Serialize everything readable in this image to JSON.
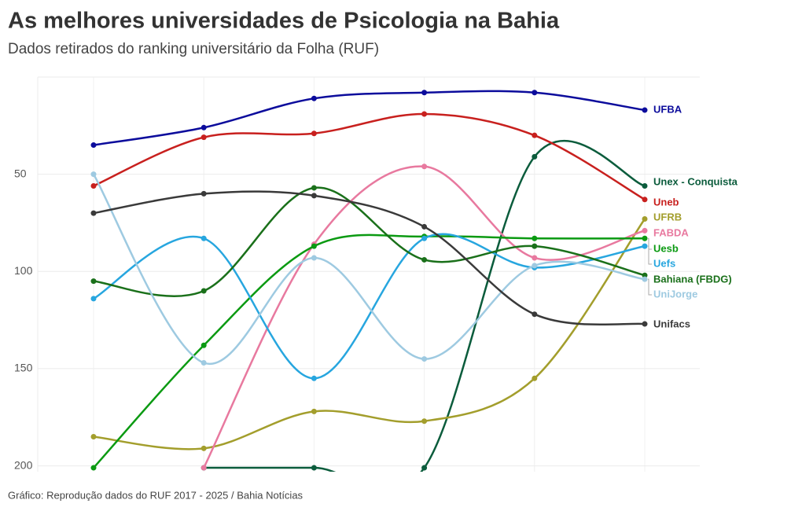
{
  "chart_data": {
    "type": "line",
    "title": "As melhores universidades de Psicologia na Bahia",
    "subtitle": "Dados retirados do ranking universitário da Folha (RUF)",
    "source": "Gráfico: Reprodução dados do RUF 2017 - 2025 / Bahia Notícias",
    "categories": [
      null,
      null,
      null,
      null,
      null,
      null
    ],
    "ylim": [
      203,
      0
    ],
    "yticks": [
      50,
      100,
      150,
      200
    ],
    "grid": true,
    "series": [
      {
        "name": "UFBA",
        "color": "#0c0c9c",
        "values": [
          35,
          26,
          11,
          8,
          8,
          17
        ]
      },
      {
        "name": "Unex - Conquista",
        "color": "#0b5c3c",
        "values": [
          null,
          201,
          201,
          201,
          41,
          56
        ]
      },
      {
        "name": "Uneb",
        "color": "#c8201e",
        "values": [
          56,
          31,
          29,
          19,
          30,
          63
        ]
      },
      {
        "name": "UFRB",
        "color": "#a39e2c",
        "values": [
          185,
          191,
          172,
          177,
          155,
          73
        ]
      },
      {
        "name": "FABDA",
        "color": "#e8799f",
        "values": [
          null,
          201,
          86,
          46,
          93,
          79
        ]
      },
      {
        "name": "Uesb",
        "color": "#0b9a12",
        "values": [
          201,
          138,
          87,
          82,
          83,
          83
        ]
      },
      {
        "name": "Uefs",
        "color": "#27a6df",
        "values": [
          114,
          83,
          155,
          83,
          98,
          87
        ]
      },
      {
        "name": "Bahiana (FBDG)",
        "color": "#1a701a",
        "values": [
          105,
          110,
          57,
          94,
          87,
          102
        ]
      },
      {
        "name": "UniJorge",
        "color": "#9ecae1",
        "values": [
          50,
          147,
          93,
          145,
          97,
          104
        ]
      },
      {
        "name": "Unifacs",
        "color": "#3a3a3a",
        "values": [
          70,
          60,
          61,
          77,
          122,
          127
        ]
      }
    ]
  }
}
